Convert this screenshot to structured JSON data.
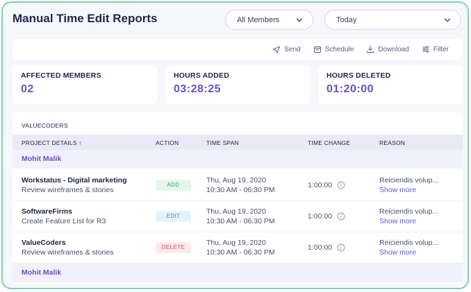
{
  "title": "Manual Time Edit Reports",
  "filters": {
    "members": "All Members",
    "date": "Today"
  },
  "toolbar": {
    "send": "Send",
    "schedule": "Schedule",
    "download": "Download",
    "filter": "Filter"
  },
  "stats": [
    {
      "label": "AFFECTED MEMBERS",
      "value": "02"
    },
    {
      "label": "HOURS ADDED",
      "value": "03:28:25"
    },
    {
      "label": "HOURS DELETED",
      "value": "01:20:00"
    }
  ],
  "table": {
    "group": "VALUECODERS",
    "headers": {
      "project": "PROJECT DETAILS ↑",
      "action": "ACTION",
      "span": "TIME SPAN",
      "change": "TIME CHANGE",
      "reason": "REASON"
    },
    "members": [
      "Mohit Malik",
      "Mohit Malik"
    ],
    "rows": [
      {
        "project": "Workstatus - Digital marketing",
        "task": "Review wireframes & stories",
        "action": "ADD",
        "date": "Thu, Aug 19, 2020",
        "time": "10:30 AM - 06:30 PM",
        "change": "1:00:00",
        "reason": "Reiciendis volup...",
        "more": "Show more"
      },
      {
        "project": "SoftwareFirms",
        "task": "Create Feature List for R3",
        "action": "EDIT",
        "date": "Thu, Aug 19, 2020",
        "time": "10:30 AM - 06:30 PM",
        "change": "1:00:00",
        "reason": "Reiciendis volup...",
        "more": "Show more"
      },
      {
        "project": "ValueCoders",
        "task": "Review wireframes & stories",
        "action": "DELETE",
        "date": "Thu, Aug 19, 2020",
        "time": "10:30 AM - 06:30 PM",
        "change": "1:00:00",
        "reason": "Reiciendis volup...",
        "more": "Show more"
      }
    ]
  },
  "colors": {
    "accent": "#6a4fc2",
    "border": "#7fd0b3",
    "add": "#3aa862",
    "edit": "#3a8fcf",
    "delete": "#d9505e"
  }
}
